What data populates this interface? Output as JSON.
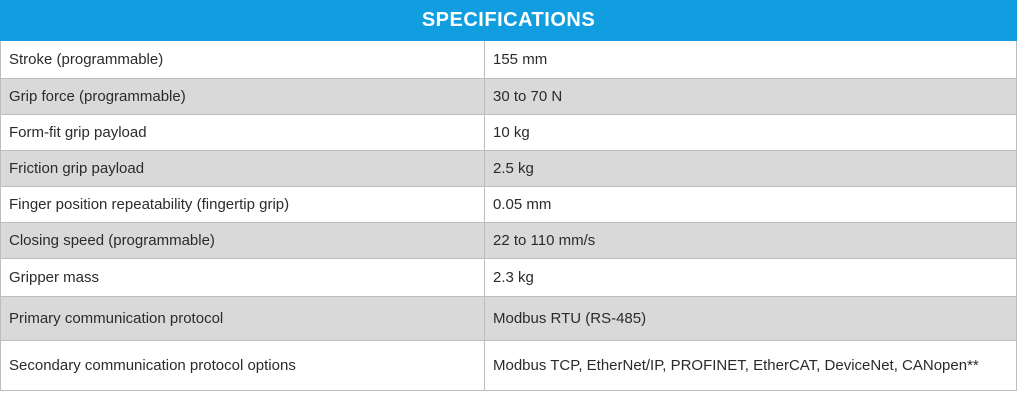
{
  "title": "SPECIFICATIONS",
  "rows": [
    {
      "label": "Stroke (programmable)",
      "value": "155 mm"
    },
    {
      "label": "Grip force  (programmable)",
      "value": "30 to 70 N"
    },
    {
      "label": "Form-fit grip payload",
      "value": "10 kg"
    },
    {
      "label": "Friction grip payload",
      "value": "2.5 kg"
    },
    {
      "label": "Finger position repeatability (fingertip grip)",
      "value": "0.05 mm"
    },
    {
      "label": "Closing speed  (programmable)",
      "value": "22 to 110 mm/s"
    },
    {
      "label": "Gripper mass",
      "value": "2.3 kg"
    },
    {
      "label": "Primary communication protocol",
      "value": "Modbus RTU (RS-485)"
    },
    {
      "label": "Secondary communication protocol options",
      "value": "Modbus TCP, EtherNet/IP, PROFINET, EtherCAT, DeviceNet, CANopen**"
    }
  ]
}
